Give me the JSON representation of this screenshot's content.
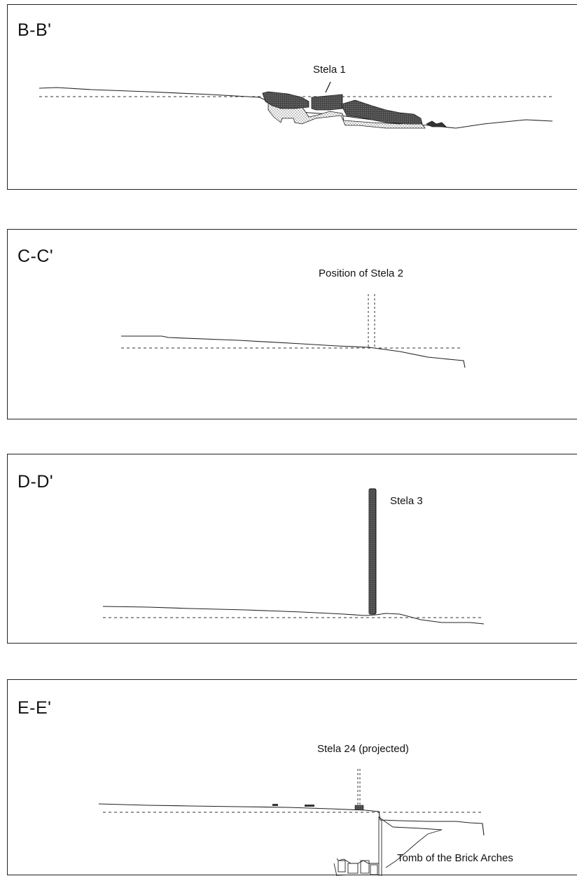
{
  "sections": [
    {
      "title": "B-B'",
      "label": "Stela 1"
    },
    {
      "title": "C-C'",
      "label": "Position of Stela 2"
    },
    {
      "title": "D-D'",
      "label": "Stela 3"
    },
    {
      "title": "E-E'",
      "label": "Stela 24 (projected)",
      "label2": "Tomb of the Brick Arches"
    }
  ]
}
